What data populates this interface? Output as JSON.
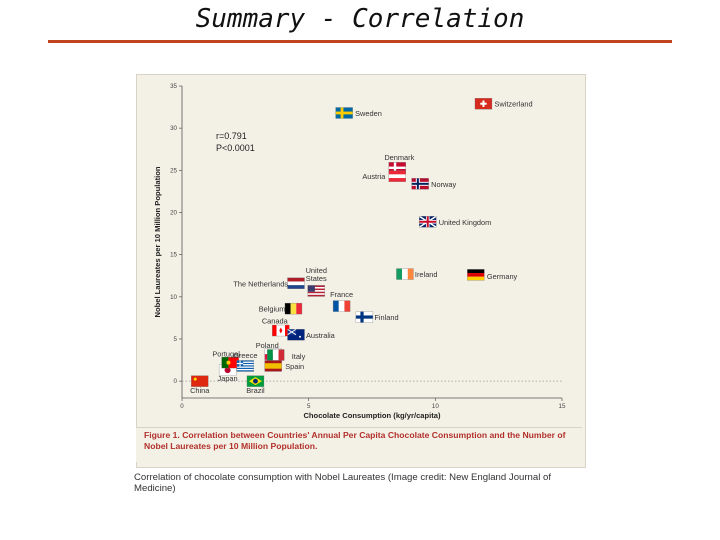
{
  "slide": {
    "title": "Summary - Correlation"
  },
  "caption": {
    "figure_label": "Figure 1.",
    "text": "Correlation between Countries' Annual Per Capita Chocolate Consumption and the Number of Nobel Laureates per 10 Million Population."
  },
  "credit": "Correlation of chocolate consumption with Nobel Laureates (Image credit: New England Journal of Medicine)",
  "chart_data": {
    "type": "scatter",
    "title": "",
    "xlabel": "Chocolate Consumption (kg/yr/capita)",
    "ylabel": "Nobel Laureates per 10 Million Population",
    "xlim": [
      0,
      15
    ],
    "ylim": [
      -2,
      35
    ],
    "xticks": [
      0,
      5,
      10,
      15
    ],
    "yticks": [
      0,
      5,
      10,
      15,
      20,
      25,
      30,
      35
    ],
    "annotation": [
      "r=0.791",
      "P<0.0001"
    ],
    "trendline": {
      "x": [
        0,
        15
      ],
      "y": [
        0,
        0
      ]
    },
    "points": [
      {
        "name": "China",
        "x": 0.7,
        "y": 0.0,
        "flag": "china"
      },
      {
        "name": "Japan",
        "x": 1.8,
        "y": 1.3,
        "flag": "japan"
      },
      {
        "name": "Brazil",
        "x": 2.9,
        "y": 0.0,
        "flag": "brazil"
      },
      {
        "name": "Portugal",
        "x": 1.9,
        "y": 2.2,
        "flag": "portugal"
      },
      {
        "name": "Greece",
        "x": 2.5,
        "y": 1.8,
        "flag": "greece"
      },
      {
        "name": "Poland",
        "x": 3.6,
        "y": 3.2,
        "flag": "poland"
      },
      {
        "name": "Italy",
        "x": 3.7,
        "y": 3.1,
        "flag": "italy"
      },
      {
        "name": "Spain",
        "x": 3.6,
        "y": 1.8,
        "flag": "spain"
      },
      {
        "name": "Canada",
        "x": 3.9,
        "y": 6.0,
        "flag": "canada"
      },
      {
        "name": "Australia",
        "x": 4.5,
        "y": 5.5,
        "flag": "australia"
      },
      {
        "name": "Belgium",
        "x": 4.4,
        "y": 8.6,
        "flag": "belgium"
      },
      {
        "name": "The Netherlands",
        "x": 4.5,
        "y": 11.6,
        "flag": "netherlands"
      },
      {
        "name": "United States",
        "x": 5.3,
        "y": 10.7,
        "flag": "usa"
      },
      {
        "name": "France",
        "x": 6.3,
        "y": 8.9,
        "flag": "france"
      },
      {
        "name": "Finland",
        "x": 7.2,
        "y": 7.6,
        "flag": "finland"
      },
      {
        "name": "Sweden",
        "x": 6.4,
        "y": 31.8,
        "flag": "sweden"
      },
      {
        "name": "Denmark",
        "x": 8.5,
        "y": 25.3,
        "flag": "denmark"
      },
      {
        "name": "Austria",
        "x": 8.5,
        "y": 24.3,
        "flag": "austria"
      },
      {
        "name": "Norway",
        "x": 9.4,
        "y": 23.4,
        "flag": "norway"
      },
      {
        "name": "United Kingdom",
        "x": 9.7,
        "y": 18.9,
        "flag": "uk"
      },
      {
        "name": "Ireland",
        "x": 8.8,
        "y": 12.7,
        "flag": "ireland"
      },
      {
        "name": "Germany",
        "x": 11.6,
        "y": 12.6,
        "flag": "germany"
      },
      {
        "name": "Switzerland",
        "x": 11.9,
        "y": 32.9,
        "flag": "switzerland"
      }
    ]
  }
}
